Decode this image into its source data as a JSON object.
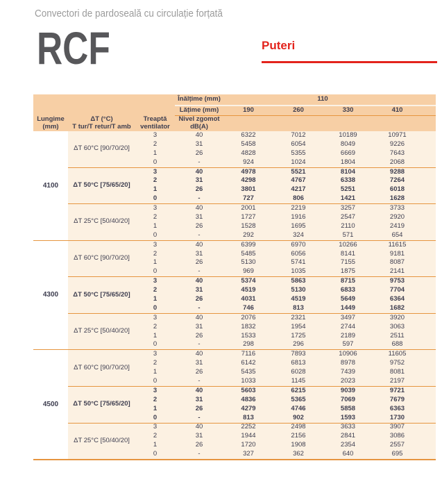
{
  "header": {
    "subtitle": "Convectori de pardoseală cu circulație forțată",
    "product_code": "RCF",
    "section_label": "Puteri"
  },
  "colors": {
    "accent_red": "#e3231c",
    "header_bg": "#f7cfa5",
    "body_bg": "#fcf1e2",
    "line_orange": "#e6953f",
    "text_dark": "#3d3d4f",
    "title_gray": "#57575a",
    "subtitle_gray": "#9b9b9b"
  },
  "table": {
    "header": {
      "height_label": "Înălțime (mm)",
      "height_value": "110",
      "width_label": "Lățime (mm)",
      "width_values": [
        "190",
        "260",
        "330",
        "410"
      ],
      "columns": [
        {
          "lines": [
            "Lungime",
            "(mm)"
          ]
        },
        {
          "lines": [
            "ΔT (°C)",
            "T tur/T retur/T amb"
          ]
        },
        {
          "lines": [
            "Treaptă",
            "ventilator"
          ]
        },
        {
          "lines": [
            "Nivel zgomot",
            "dB(A)"
          ]
        }
      ]
    },
    "blocks": [
      {
        "length": "4100",
        "groups": [
          {
            "dt_label": "ΔT 60°C [90/70/20]",
            "bold": false,
            "rows": [
              {
                "fan": "3",
                "noise": "40",
                "values": [
                  "6322",
                  "7012",
                  "10189",
                  "10971"
                ]
              },
              {
                "fan": "2",
                "noise": "31",
                "values": [
                  "5458",
                  "6054",
                  "8049",
                  "9226"
                ]
              },
              {
                "fan": "1",
                "noise": "26",
                "values": [
                  "4828",
                  "5355",
                  "6669",
                  "7643"
                ]
              },
              {
                "fan": "0",
                "noise": "-",
                "values": [
                  "924",
                  "1024",
                  "1804",
                  "2068"
                ]
              }
            ]
          },
          {
            "dt_label": "ΔT 50°C [75/65/20]",
            "bold": true,
            "rows": [
              {
                "fan": "3",
                "noise": "40",
                "values": [
                  "4978",
                  "5521",
                  "8104",
                  "9288"
                ]
              },
              {
                "fan": "2",
                "noise": "31",
                "values": [
                  "4298",
                  "4767",
                  "6338",
                  "7264"
                ]
              },
              {
                "fan": "1",
                "noise": "26",
                "values": [
                  "3801",
                  "4217",
                  "5251",
                  "6018"
                ]
              },
              {
                "fan": "0",
                "noise": "-",
                "values": [
                  "727",
                  "806",
                  "1421",
                  "1628"
                ]
              }
            ]
          },
          {
            "dt_label": "ΔT 25°C [50/40/20]",
            "bold": false,
            "rows": [
              {
                "fan": "3",
                "noise": "40",
                "values": [
                  "2001",
                  "2219",
                  "3257",
                  "3733"
                ]
              },
              {
                "fan": "2",
                "noise": "31",
                "values": [
                  "1727",
                  "1916",
                  "2547",
                  "2920"
                ]
              },
              {
                "fan": "1",
                "noise": "26",
                "values": [
                  "1528",
                  "1695",
                  "2110",
                  "2419"
                ]
              },
              {
                "fan": "0",
                "noise": "-",
                "values": [
                  "292",
                  "324",
                  "571",
                  "654"
                ]
              }
            ]
          }
        ]
      },
      {
        "length": "4300",
        "groups": [
          {
            "dt_label": "ΔT 60°C [90/70/20]",
            "bold": false,
            "rows": [
              {
                "fan": "3",
                "noise": "40",
                "values": [
                  "6399",
                  "6970",
                  "10266",
                  "11615"
                ]
              },
              {
                "fan": "2",
                "noise": "31",
                "values": [
                  "5485",
                  "6056",
                  "8141",
                  "9181"
                ]
              },
              {
                "fan": "1",
                "noise": "26",
                "values": [
                  "5130",
                  "5741",
                  "7155",
                  "8087"
                ]
              },
              {
                "fan": "0",
                "noise": "-",
                "values": [
                  "969",
                  "1035",
                  "1875",
                  "2141"
                ]
              }
            ]
          },
          {
            "dt_label": "ΔT 50°C [75/65/20]",
            "bold": true,
            "rows": [
              {
                "fan": "3",
                "noise": "40",
                "values": [
                  "5374",
                  "5863",
                  "8715",
                  "9753"
                ]
              },
              {
                "fan": "2",
                "noise": "31",
                "values": [
                  "4519",
                  "5130",
                  "6833",
                  "7704"
                ]
              },
              {
                "fan": "1",
                "noise": "26",
                "values": [
                  "4031",
                  "4519",
                  "5649",
                  "6364"
                ]
              },
              {
                "fan": "0",
                "noise": "-",
                "values": [
                  "746",
                  "813",
                  "1449",
                  "1682"
                ]
              }
            ]
          },
          {
            "dt_label": "ΔT 25°C [50/40/20]",
            "bold": false,
            "rows": [
              {
                "fan": "3",
                "noise": "40",
                "values": [
                  "2076",
                  "2321",
                  "3497",
                  "3920"
                ]
              },
              {
                "fan": "2",
                "noise": "31",
                "values": [
                  "1832",
                  "1954",
                  "2744",
                  "3063"
                ]
              },
              {
                "fan": "1",
                "noise": "26",
                "values": [
                  "1533",
                  "1725",
                  "2189",
                  "2511"
                ]
              },
              {
                "fan": "0",
                "noise": "-",
                "values": [
                  "298",
                  "296",
                  "597",
                  "688"
                ]
              }
            ]
          }
        ]
      },
      {
        "length": "4500",
        "groups": [
          {
            "dt_label": "ΔT 60°C [90/70/20]",
            "bold": false,
            "rows": [
              {
                "fan": "3",
                "noise": "40",
                "values": [
                  "7116",
                  "7893",
                  "10906",
                  "11605"
                ]
              },
              {
                "fan": "2",
                "noise": "31",
                "values": [
                  "6142",
                  "6813",
                  "8978",
                  "9752"
                ]
              },
              {
                "fan": "1",
                "noise": "26",
                "values": [
                  "5435",
                  "6028",
                  "7439",
                  "8081"
                ]
              },
              {
                "fan": "0",
                "noise": "-",
                "values": [
                  "1033",
                  "1145",
                  "2023",
                  "2197"
                ]
              }
            ]
          },
          {
            "dt_label": "ΔT 50°C [75/65/20]",
            "bold": true,
            "rows": [
              {
                "fan": "3",
                "noise": "40",
                "values": [
                  "5603",
                  "6215",
                  "9039",
                  "9721"
                ]
              },
              {
                "fan": "2",
                "noise": "31",
                "values": [
                  "4836",
                  "5365",
                  "7069",
                  "7679"
                ]
              },
              {
                "fan": "1",
                "noise": "26",
                "values": [
                  "4279",
                  "4746",
                  "5858",
                  "6363"
                ]
              },
              {
                "fan": "0",
                "noise": "-",
                "values": [
                  "813",
                  "902",
                  "1593",
                  "1730"
                ]
              }
            ]
          },
          {
            "dt_label": "ΔT 25°C [50/40/20]",
            "bold": false,
            "rows": [
              {
                "fan": "3",
                "noise": "40",
                "values": [
                  "2252",
                  "2498",
                  "3633",
                  "3907"
                ]
              },
              {
                "fan": "2",
                "noise": "31",
                "values": [
                  "1944",
                  "2156",
                  "2841",
                  "3086"
                ]
              },
              {
                "fan": "1",
                "noise": "26",
                "values": [
                  "1720",
                  "1908",
                  "2354",
                  "2557"
                ]
              },
              {
                "fan": "0",
                "noise": "-",
                "values": [
                  "327",
                  "362",
                  "640",
                  "695"
                ]
              }
            ]
          }
        ]
      }
    ]
  }
}
